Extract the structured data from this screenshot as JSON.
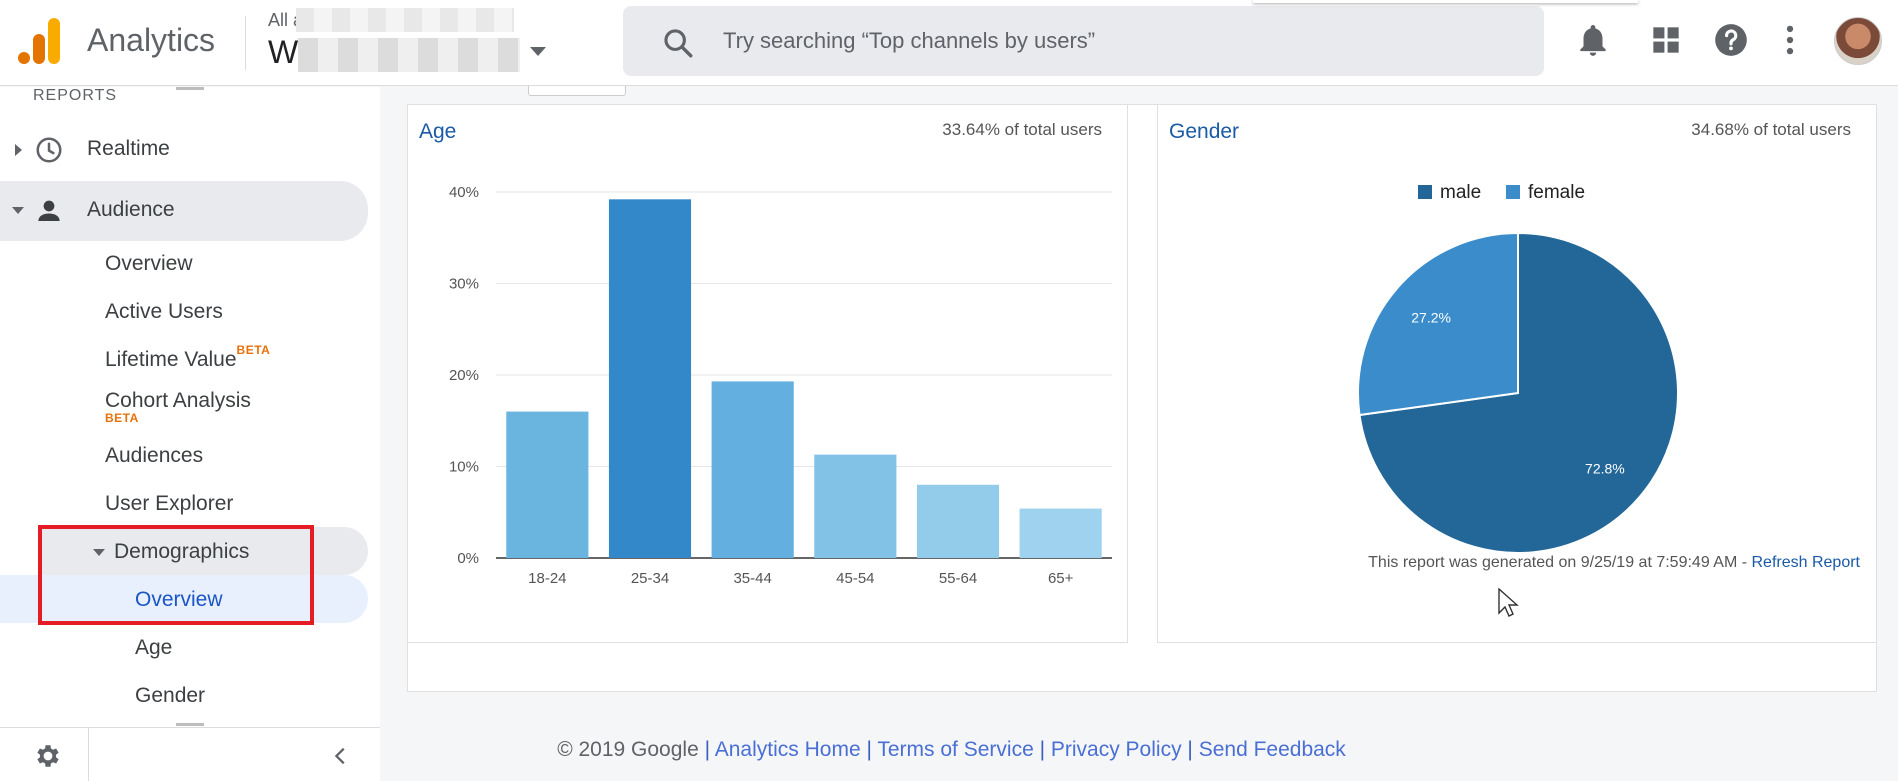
{
  "header": {
    "app_title": "Analytics",
    "account_path": "All a                    s and Sol...",
    "account_name": "W",
    "search_placeholder": "Try searching “Top channels by users”",
    "icons": [
      "bell-icon",
      "apps-grid-icon",
      "help-icon",
      "more-vert-icon"
    ]
  },
  "sidebar": {
    "section_label": "REPORTS",
    "realtime": "Realtime",
    "audience": "Audience",
    "audience_items": {
      "overview": "Overview",
      "active_users": "Active Users",
      "lifetime_value": "Lifetime Value",
      "cohort_analysis": "Cohort Analysis",
      "audiences": "Audiences",
      "user_explorer": "User Explorer",
      "demographics": "Demographics",
      "demo_overview": "Overview",
      "demo_age": "Age",
      "demo_gender": "Gender"
    },
    "beta_label": "BETA"
  },
  "age_panel": {
    "title": "Age",
    "total": "33.64% of total users"
  },
  "gender_panel": {
    "title": "Gender",
    "total": "34.68% of total users"
  },
  "chart_data": [
    {
      "type": "bar",
      "title": "Age",
      "categories": [
        "18-24",
        "25-34",
        "35-44",
        "45-54",
        "55-64",
        "65+"
      ],
      "values": [
        16,
        39.2,
        19.3,
        11.3,
        8,
        5.4
      ],
      "ylim": [
        0,
        40
      ],
      "yticks": [
        "0%",
        "10%",
        "20%",
        "30%",
        "40%"
      ],
      "colors": [
        "#6ab4e0",
        "#3288c8",
        "#63afe0",
        "#82c2e6",
        "#93cceb",
        "#9ed2ee"
      ],
      "grid": true
    },
    {
      "type": "pie",
      "title": "Gender",
      "labels": [
        "male",
        "female"
      ],
      "values": [
        72.8,
        27.2
      ],
      "display_labels": [
        "72.8%",
        "27.2%"
      ],
      "colors": [
        "#236798",
        "#3b8ccb"
      ],
      "legend": "top"
    }
  ],
  "report": {
    "generated_text": "This report was generated on 9/25/19 at 7:59:49 AM - ",
    "refresh_label": "Refresh Report"
  },
  "footer": {
    "copyright": "© 2019 Google",
    "links": [
      "Analytics Home",
      "Terms of Service",
      "Privacy Policy",
      "Send Feedback"
    ],
    "separator": " | "
  }
}
